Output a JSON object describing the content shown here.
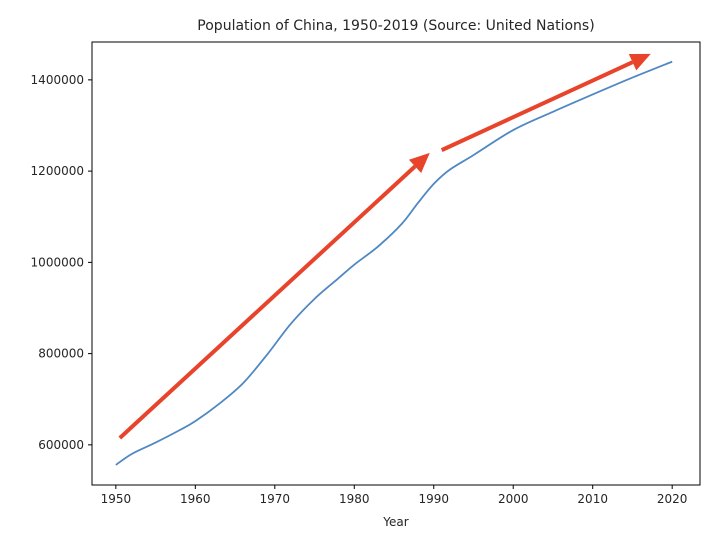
{
  "chart_data": {
    "type": "line",
    "title": "Population of China, 1950-2019 (Source: United Nations)",
    "xlabel": "Year",
    "ylabel": "",
    "xlim": [
      1947,
      2023.5
    ],
    "ylim": [
      512000,
      1483000
    ],
    "xticks": [
      1950,
      1960,
      1970,
      1980,
      1990,
      2000,
      2010,
      2020
    ],
    "yticks": [
      600000,
      800000,
      1000000,
      1200000,
      1400000
    ],
    "grid": false,
    "series": [
      {
        "color": "#4f88c2",
        "x": [
          1950,
          1952,
          1955,
          1958,
          1960,
          1963,
          1966,
          1969,
          1972,
          1975,
          1978,
          1980,
          1983,
          1986,
          1988,
          1990,
          1992,
          1995,
          2000,
          2005,
          2010,
          2015,
          2020
        ],
        "y": [
          556000,
          580000,
          605000,
          632000,
          652000,
          690000,
          735000,
          797000,
          865000,
          920000,
          965000,
          995000,
          1035000,
          1085000,
          1130000,
          1172000,
          1203000,
          1235000,
          1290000,
          1330000,
          1368000,
          1405000,
          1440000
        ]
      }
    ],
    "annotations": [
      {
        "type": "arrow",
        "color": "#e8432b",
        "from": [
          1950.5,
          615000
        ],
        "to": [
          1989.5,
          1240000
        ]
      },
      {
        "type": "arrow",
        "color": "#e8432b",
        "from": [
          1991,
          1246000
        ],
        "to": [
          2017.3,
          1457000
        ]
      }
    ]
  }
}
